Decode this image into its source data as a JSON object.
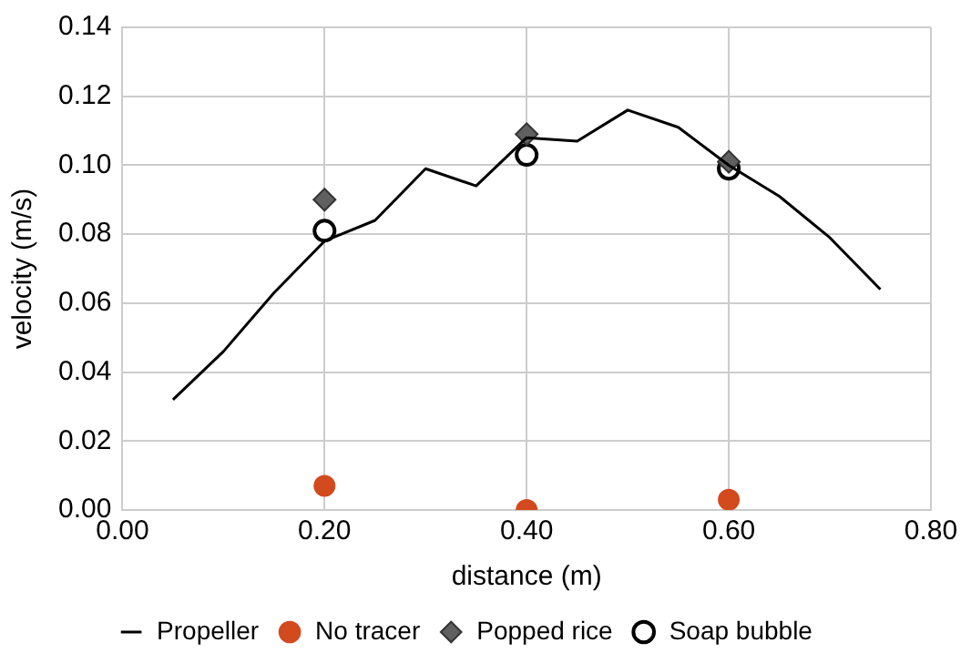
{
  "chart_data": {
    "type": "line",
    "xlabel": "distance (m)",
    "ylabel": "velocity (m/s)",
    "xlim": [
      0,
      0.8
    ],
    "xticks": [
      {
        "value": 0,
        "label": "0.00"
      },
      {
        "value": 0.2,
        "label": "0.20"
      },
      {
        "value": 0.4,
        "label": "0.40"
      },
      {
        "value": 0.6,
        "label": "0.60"
      },
      {
        "value": 0.8,
        "label": "0.80"
      }
    ],
    "ylim": [
      0,
      0.14
    ],
    "yticks": [
      {
        "value": 0,
        "label": "0.00"
      },
      {
        "value": 0.02,
        "label": "0.02"
      },
      {
        "value": 0.04,
        "label": "0.04"
      },
      {
        "value": 0.06,
        "label": "0.06"
      },
      {
        "value": 0.08,
        "label": "0.08"
      },
      {
        "value": 0.1,
        "label": "0.10"
      },
      {
        "value": 0.12,
        "label": "0.12"
      },
      {
        "value": 0.14,
        "label": "0.14"
      }
    ],
    "grid": true,
    "legend": "bottom",
    "series": [
      {
        "name": "Propeller",
        "type": "line",
        "marker": "none",
        "color": "#000000",
        "x": [
          0.05,
          0.1,
          0.15,
          0.2,
          0.25,
          0.3,
          0.35,
          0.4,
          0.45,
          0.5,
          0.55,
          0.6,
          0.65,
          0.7,
          0.75
        ],
        "values": [
          0.032,
          0.046,
          0.063,
          0.078,
          0.084,
          0.099,
          0.094,
          0.108,
          0.107,
          0.116,
          0.111,
          0.1,
          0.091,
          0.079,
          0.064
        ]
      },
      {
        "name": "No tracer",
        "type": "scatter",
        "marker": "circle",
        "color": "#d24a1e",
        "x": [
          0.2,
          0.4,
          0.6
        ],
        "values": [
          0.007,
          0,
          0.003
        ]
      },
      {
        "name": "Popped rice",
        "type": "scatter",
        "marker": "diamond",
        "color": "#606060",
        "x": [
          0.2,
          0.4,
          0.6
        ],
        "values": [
          0.09,
          0.109,
          0.101
        ]
      },
      {
        "name": "Soap bubble",
        "type": "scatter",
        "marker": "circle",
        "color": "#000000",
        "x": [
          0.2,
          0.4,
          0.6
        ],
        "values": [
          0.081,
          0.103,
          0.099
        ]
      }
    ]
  }
}
